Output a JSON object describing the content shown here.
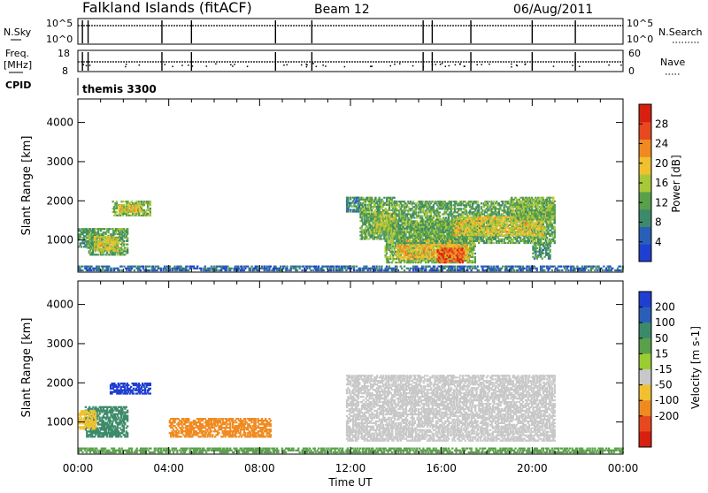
{
  "header": {
    "station": "Falkland Islands (fitACF)",
    "beam": "Beam 12",
    "date": "06/Aug/2011"
  },
  "meta_panels": {
    "nsky_label": "N.Sky",
    "nsky_ticks": [
      "10^5",
      "10^0"
    ],
    "nsearch_label": "N.Search",
    "nsearch_ticks": [
      "10^5",
      "10^0"
    ],
    "freq_label": "Freq.",
    "freq_unit": "[MHz]",
    "freq_ticks": [
      "18",
      "8"
    ],
    "nave_label": "Nave",
    "nave_ticks": [
      "60",
      "0"
    ],
    "cpid_label": "CPID",
    "cpid_value": "themis 3300"
  },
  "colors": {
    "power": [
      "#1f3fd1",
      "#2a5fb8",
      "#3d8a6a",
      "#5aa04a",
      "#a8c83a",
      "#f0c030",
      "#f08a20",
      "#e84820",
      "#d82010"
    ],
    "velocity": [
      "#1f3fd1",
      "#2a5fb8",
      "#3d8a6a",
      "#5aa04a",
      "#9acd32",
      "#c8c8c8",
      "#f0c030",
      "#f08a20",
      "#e84820",
      "#d82010"
    ]
  },
  "chart_data": [
    {
      "type": "heatmap",
      "name": "power",
      "ylabel": "Slant Range [km]",
      "ylim": [
        180,
        4600
      ],
      "yticks": [
        "1000",
        "2000",
        "3000",
        "4000"
      ],
      "colorbar_label": "Power [dB]",
      "colorbar_ticks": [
        "4",
        "8",
        "12",
        "16",
        "20",
        "24",
        "28"
      ],
      "colorbar_range": [
        0,
        32
      ],
      "blobs": [
        {
          "t0": 0.0,
          "t1": 0.8,
          "r0": 800,
          "r1": 1300,
          "v": 10
        },
        {
          "t0": 0.4,
          "t1": 2.2,
          "r0": 600,
          "r1": 1300,
          "v": 12
        },
        {
          "t0": 0.7,
          "t1": 1.8,
          "r0": 700,
          "r1": 1100,
          "v": 18
        },
        {
          "t0": 1.5,
          "t1": 3.2,
          "r0": 1600,
          "r1": 2000,
          "v": 14
        },
        {
          "t0": 1.8,
          "t1": 2.8,
          "r0": 1700,
          "r1": 1900,
          "v": 20
        },
        {
          "t0": 11.8,
          "t1": 12.4,
          "r0": 1700,
          "r1": 2100,
          "v": 8
        },
        {
          "t0": 12.4,
          "t1": 14.0,
          "r0": 1000,
          "r1": 2100,
          "v": 12
        },
        {
          "t0": 13.0,
          "t1": 14.0,
          "r0": 1200,
          "r1": 1700,
          "v": 16
        },
        {
          "t0": 13.5,
          "t1": 17.5,
          "r0": 400,
          "r1": 1500,
          "v": 14
        },
        {
          "t0": 14.0,
          "t1": 17.2,
          "r0": 500,
          "r1": 1000,
          "v": 20
        },
        {
          "t0": 15.8,
          "t1": 17.0,
          "r0": 400,
          "r1": 800,
          "v": 26
        },
        {
          "t0": 14.0,
          "t1": 21.0,
          "r0": 900,
          "r1": 2000,
          "v": 12
        },
        {
          "t0": 16.5,
          "t1": 20.5,
          "r0": 1100,
          "r1": 1600,
          "v": 18
        },
        {
          "t0": 19.0,
          "t1": 21.0,
          "r0": 1500,
          "r1": 2100,
          "v": 14
        },
        {
          "t0": 20.0,
          "t1": 20.8,
          "r0": 500,
          "r1": 900,
          "v": 10
        },
        {
          "t0": 0.0,
          "t1": 24.0,
          "r0": 200,
          "r1": 350,
          "v": 6
        }
      ]
    },
    {
      "type": "heatmap",
      "name": "velocity",
      "ylabel": "Slant Range [km]",
      "xlabel": "Time UT",
      "ylim": [
        180,
        4600
      ],
      "yticks": [
        "1000",
        "2000",
        "3000",
        "4000"
      ],
      "xticks": [
        "00:00",
        "04:00",
        "08:00",
        "12:00",
        "16:00",
        "20:00",
        "00:00"
      ],
      "colorbar_label": "Velocity [m s-1]",
      "colorbar_ticks": [
        "200",
        "100",
        "50",
        "15",
        "-15",
        "-50",
        "-100",
        "-200"
      ],
      "blobs": [
        {
          "t0": 0.3,
          "t1": 2.2,
          "r0": 600,
          "r1": 1400,
          "v": 70
        },
        {
          "t0": 0.0,
          "t1": 0.8,
          "r0": 800,
          "r1": 1300,
          "v": -40
        },
        {
          "t0": 1.4,
          "t1": 3.2,
          "r0": 1700,
          "r1": 2000,
          "v": 250
        },
        {
          "t0": 4.0,
          "t1": 8.5,
          "r0": 600,
          "r1": 1100,
          "v": -60
        },
        {
          "t0": 11.8,
          "t1": 21.0,
          "r0": 500,
          "r1": 2200,
          "v": 0
        },
        {
          "t0": 0.0,
          "t1": 24.0,
          "r0": 200,
          "r1": 350,
          "v": 30
        }
      ]
    }
  ]
}
